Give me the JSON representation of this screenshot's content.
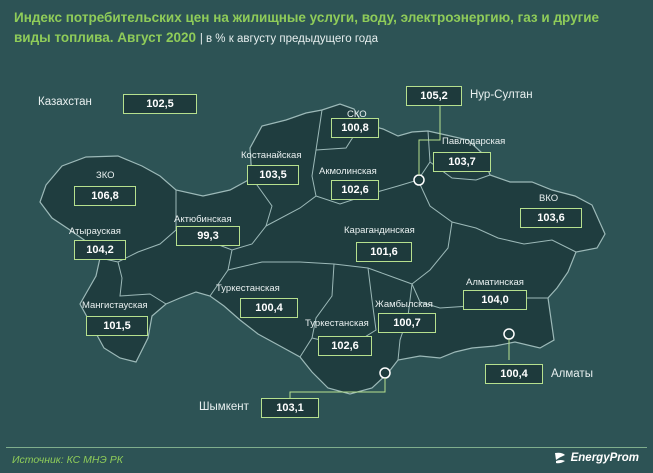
{
  "title": {
    "main": "Индекс потребительских цен на жилищные услуги, воду, электроэнергию, газ и другие виды топлива. Август 2020",
    "sub": "| в % к августу предыдущего года"
  },
  "country": {
    "name": "Казахстан",
    "value": "102,5"
  },
  "regions": [
    {
      "id": "sko",
      "name": "СКО",
      "value": "100,8"
    },
    {
      "id": "nur-sultan",
      "name": "Нур-Султан",
      "value": "105,2"
    },
    {
      "id": "pavlodar",
      "name": "Павлодарская",
      "value": "103,7"
    },
    {
      "id": "kostanay",
      "name": "Костанайская",
      "value": "103,5"
    },
    {
      "id": "akmola",
      "name": "Акмолинская",
      "value": "102,6"
    },
    {
      "id": "zko",
      "name": "ЗКО",
      "value": "106,8"
    },
    {
      "id": "vko",
      "name": "ВКО",
      "value": "103,6"
    },
    {
      "id": "aktobe",
      "name": "Актюбинская",
      "value": "99,3"
    },
    {
      "id": "atyrau",
      "name": "Атырауская",
      "value": "104,2"
    },
    {
      "id": "karaganda",
      "name": "Карагандинская",
      "value": "101,6"
    },
    {
      "id": "kyzylorda",
      "name": "Туркестанская",
      "value": "100,4"
    },
    {
      "id": "almaty-region",
      "name": "Алматинская",
      "value": "104,0"
    },
    {
      "id": "mangystau",
      "name": "Мангистауская",
      "value": "101,5"
    },
    {
      "id": "zhambyl",
      "name": "Жамбылская",
      "value": "100,7"
    },
    {
      "id": "turkestan",
      "name": "Туркестанская",
      "value": "102,6"
    },
    {
      "id": "almaty",
      "name": "Алматы",
      "value": "100,4"
    },
    {
      "id": "shymkent",
      "name": "Шымкент",
      "value": "103,1"
    }
  ],
  "source": "Источник: КС МНЭ РК",
  "brand": "EnergyProm",
  "colors": {
    "background": "#2d5355",
    "land": "#1f3d3f",
    "accent": "#8fcc59",
    "box_border": "#b6e08e"
  }
}
